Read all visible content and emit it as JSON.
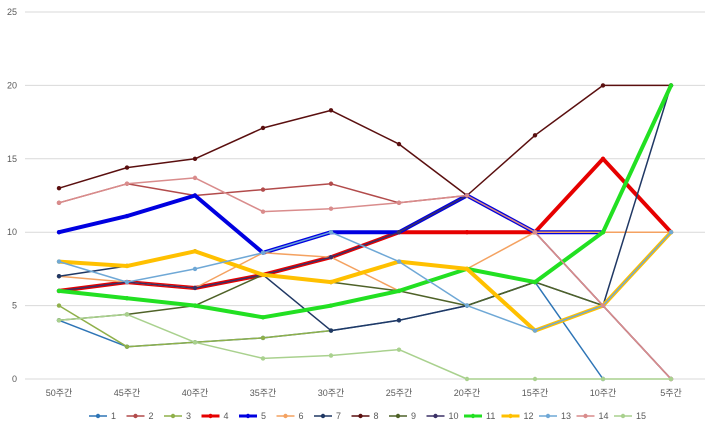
{
  "chart_data": {
    "type": "line",
    "categories": [
      "50주간",
      "45주간",
      "40주간",
      "35주간",
      "30주간",
      "25주간",
      "20주간",
      "15주간",
      "10주간",
      "5주간"
    ],
    "ylim": [
      0,
      25
    ],
    "yticks": [
      0,
      5,
      10,
      15,
      20,
      25
    ],
    "grid": true,
    "legend_position": "bottom",
    "series": [
      {
        "name": "1",
        "color": "#2e75b6",
        "width": 1.5,
        "values": [
          4,
          2.2,
          2.5,
          2.8,
          3.3,
          4,
          5,
          6.6,
          0,
          null
        ]
      },
      {
        "name": "2",
        "color": "#b24b4b",
        "width": 1.5,
        "values": [
          12,
          13.3,
          12.5,
          12.9,
          13.3,
          12,
          12.5,
          10,
          5,
          0
        ]
      },
      {
        "name": "3",
        "color": "#8fb04a",
        "width": 1.5,
        "values": [
          5,
          2.2,
          2.5,
          2.8,
          3.3,
          null,
          null,
          null,
          null,
          null
        ]
      },
      {
        "name": "4",
        "color": "#e60000",
        "width": 4,
        "values": [
          6,
          6.6,
          6.2,
          7.1,
          8.3,
          10,
          10,
          10,
          15,
          10
        ]
      },
      {
        "name": "5",
        "color": "#0000e0",
        "width": 4,
        "values": [
          10,
          11.1,
          12.5,
          8.6,
          10,
          10,
          12.5,
          10,
          10,
          null
        ]
      },
      {
        "name": "6",
        "color": "#f4a261",
        "width": 1.5,
        "values": [
          7,
          6.6,
          6.2,
          8.6,
          8.3,
          6,
          7.5,
          10,
          10,
          10
        ]
      },
      {
        "name": "7",
        "color": "#203864",
        "width": 1.5,
        "values": [
          7,
          7.7,
          8.7,
          7.1,
          3.3,
          4,
          5,
          6.6,
          5,
          20
        ]
      },
      {
        "name": "8",
        "color": "#5a0f0f",
        "width": 1.5,
        "values": [
          13,
          14.4,
          15,
          17.1,
          18.3,
          16,
          12.5,
          16.6,
          20,
          20
        ]
      },
      {
        "name": "9",
        "color": "#4f6228",
        "width": 1.5,
        "values": [
          4,
          4.4,
          5,
          7.1,
          6.6,
          6,
          5,
          6.6,
          5,
          10
        ]
      },
      {
        "name": "10",
        "color": "#3b3066",
        "width": 1.5,
        "values": [
          6,
          6.6,
          6.2,
          7.1,
          8.3,
          10,
          12.5,
          10,
          5,
          0
        ]
      },
      {
        "name": "11",
        "color": "#22e022",
        "width": 4,
        "values": [
          6,
          5.5,
          5,
          4.2,
          5,
          6,
          7.5,
          6.6,
          10,
          20
        ]
      },
      {
        "name": "12",
        "color": "#ffc000",
        "width": 4,
        "values": [
          8,
          7.7,
          8.7,
          7.1,
          6.6,
          8,
          7.5,
          3.3,
          5,
          10
        ]
      },
      {
        "name": "13",
        "color": "#6fa8d6",
        "width": 1.5,
        "values": [
          8,
          6.6,
          7.5,
          8.6,
          10,
          8,
          5,
          3.3,
          5,
          10
        ]
      },
      {
        "name": "14",
        "color": "#d98c8c",
        "width": 1.5,
        "values": [
          12,
          13.3,
          13.7,
          11.4,
          11.6,
          12,
          12.5,
          10,
          5,
          0
        ]
      },
      {
        "name": "15",
        "color": "#a9d18e",
        "width": 1.5,
        "values": [
          4,
          4.4,
          2.5,
          1.4,
          1.6,
          2,
          0,
          0,
          0,
          0
        ]
      }
    ]
  }
}
